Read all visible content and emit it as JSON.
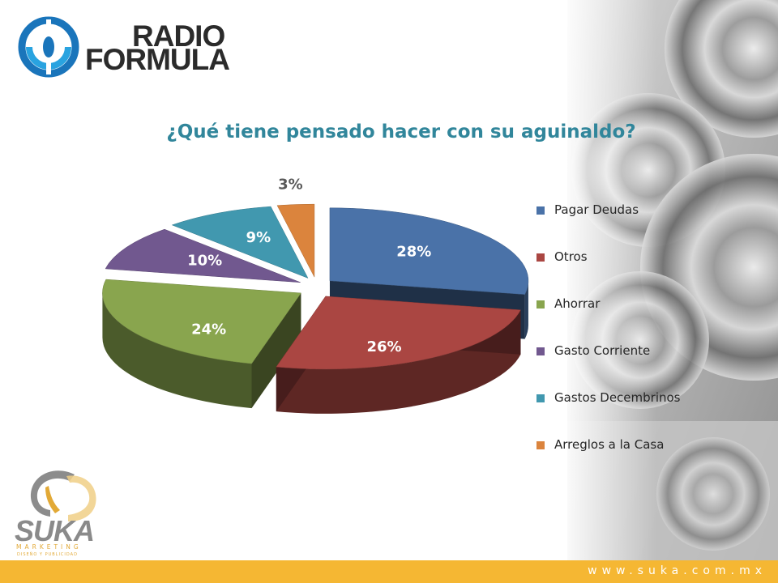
{
  "brand": {
    "radio_line1": "RADIO",
    "radio_line2": "FORMULA",
    "suka_name": "SUKA",
    "suka_tagline": "MARKETING",
    "suka_subtagline": "DISEÑO Y PUBLICIDAD",
    "website": "www.suka.com.mx"
  },
  "colors": {
    "title": "#31869b",
    "footer_bar": "#f5b733",
    "speaker_bg": "#bfbfbf"
  },
  "chart_data": {
    "type": "pie",
    "style": "3d-exploded",
    "title": "¿Qué tiene pensado hacer con su aguinaldo?",
    "legend_position": "right",
    "unit": "%",
    "slices": [
      {
        "label": "Pagar Deudas",
        "value": 28,
        "value_label": "28%",
        "color": "#4a72a8"
      },
      {
        "label": "Otros",
        "value": 26,
        "value_label": "26%",
        "color": "#aa4642"
      },
      {
        "label": "Ahorrar",
        "value": 24,
        "value_label": "24%",
        "color": "#89a54e"
      },
      {
        "label": "Gasto Corriente",
        "value": 10,
        "value_label": "10%",
        "color": "#71588f"
      },
      {
        "label": "Gastos Decembrinos",
        "value": 9,
        "value_label": "9%",
        "color": "#4198af"
      },
      {
        "label": "Arreglos a la Casa",
        "value": 3,
        "value_label": "3%",
        "color": "#db843d"
      }
    ]
  }
}
